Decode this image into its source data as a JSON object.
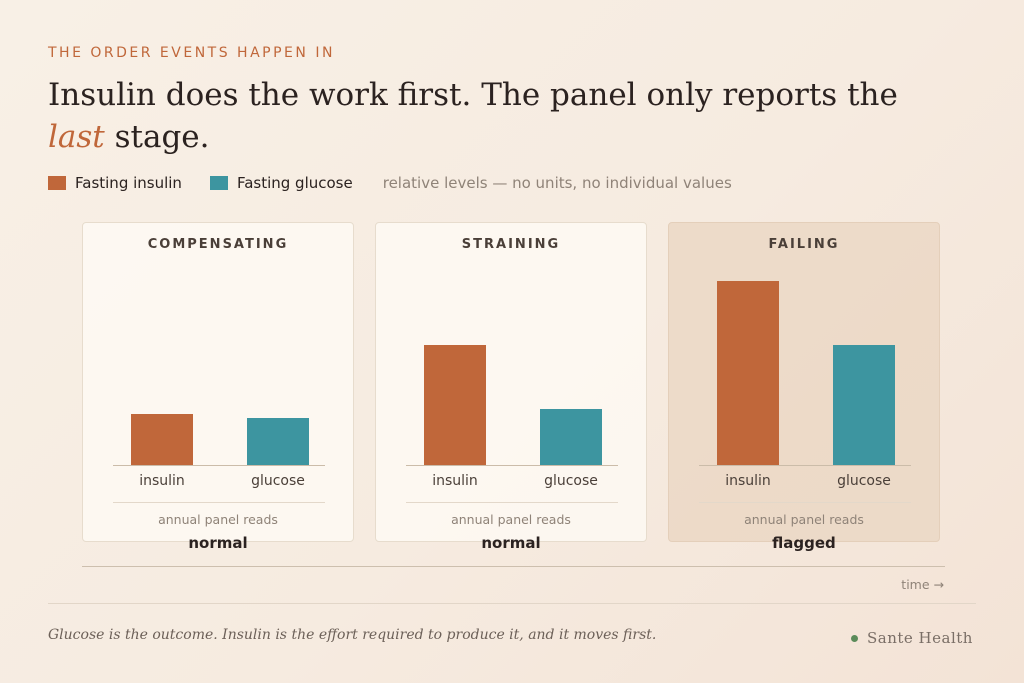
{
  "eyebrow": "THE ORDER EVENTS HAPPEN IN",
  "headline": {
    "part1": "Insulin does the work first. The panel only reports the ",
    "emphasis": "last",
    "part2": " stage."
  },
  "legend": {
    "items": [
      {
        "label": "Fasting insulin",
        "color": "#c0673a"
      },
      {
        "label": "Fasting glucose",
        "color": "#3d95a0"
      }
    ],
    "note": "relative levels — no units, no individual values"
  },
  "colors": {
    "insulin": "#c0673a",
    "glucose": "#3d95a0",
    "accent": "#c0673a"
  },
  "chart_data": {
    "type": "bar",
    "series": [
      {
        "name": "Fasting insulin",
        "key": "insulin"
      },
      {
        "name": "Fasting glucose",
        "key": "glucose"
      }
    ],
    "ylim": [
      0,
      100
    ],
    "panels": [
      {
        "title": "COMPENSATING",
        "categories": [
          "insulin",
          "glucose"
        ],
        "values": [
          28,
          26
        ],
        "reads_label": "annual panel reads",
        "status": "normal"
      },
      {
        "title": "STRAINING",
        "categories": [
          "insulin",
          "glucose"
        ],
        "values": [
          66,
          31
        ],
        "reads_label": "annual panel reads",
        "status": "normal"
      },
      {
        "title": "FAILING",
        "categories": [
          "insulin",
          "glucose"
        ],
        "values": [
          101,
          66
        ],
        "reads_label": "annual panel reads",
        "status": "flagged"
      }
    ],
    "x_axis_label": "time →"
  },
  "caption": "Glucose is the outcome. Insulin is the effort required to produce it, and it moves first.",
  "brand": "Sante Health"
}
